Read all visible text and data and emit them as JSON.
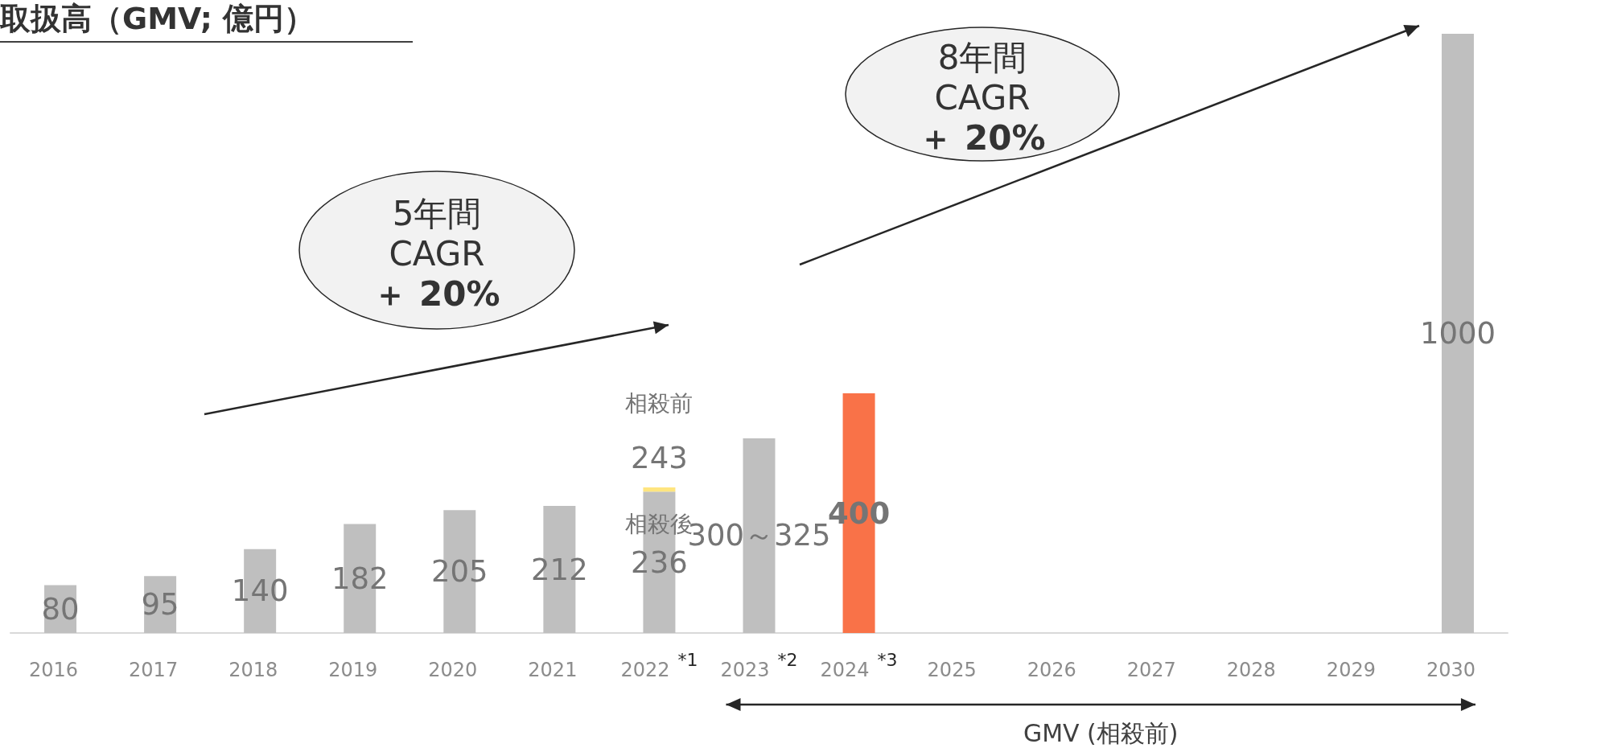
{
  "chart_data": {
    "type": "bar",
    "title": "取扱高（GMV; 億円）",
    "stacked": true,
    "categories": [
      "2016",
      "2017",
      "2018",
      "2019",
      "2020",
      "2021",
      "2022$^{*1}$",
      "2023$^{*2}$",
      "2024$^{*3}$",
      "2025",
      "2026",
      "2027",
      "2028",
      "2029",
      "2030"
    ],
    "series": [
      {
        "color": "#bfbfbf",
        "values": [
          80,
          95,
          140,
          182,
          205,
          212,
          236,
          325,
          400,
          null,
          null,
          null,
          null,
          null,
          1000
        ],
        "colors": [
          "#bfbfbf",
          "#bfbfbf",
          "#bfbfbf",
          "#bfbfbf",
          "#bfbfbf",
          "#bfbfbf",
          "#bfbfbf",
          "#bfbfbf",
          "#f97248",
          "#bfbfbf",
          "#bfbfbf",
          "#bfbfbf",
          "#bfbfbf",
          "#bfbfbf",
          "#bfbfbf"
        ],
        "value_labels": [
          "80",
          "95",
          "140",
          "182",
          "205",
          "212",
          "236",
          "300～325",
          "400",
          null,
          null,
          null,
          null,
          null,
          "1000"
        ]
      },
      {
        "color": "#ffe57f",
        "values": [
          null,
          null,
          null,
          null,
          null,
          null,
          7,
          null,
          null,
          null,
          null,
          null,
          null,
          null,
          null
        ]
      }
    ],
    "totals": [
      null,
      null,
      null,
      null,
      null,
      null,
      "243",
      null,
      null,
      null,
      null,
      null,
      null,
      null,
      null
    ],
    "annotations": [
      "5年間\nCAGR\n＋ 20%",
      "8年間\nCAGR\n＋ 20%",
      "相殺前",
      "相殺後",
      "GMV (相殺前)"
    ],
    "grid": false,
    "tick_labels": "x"
  }
}
